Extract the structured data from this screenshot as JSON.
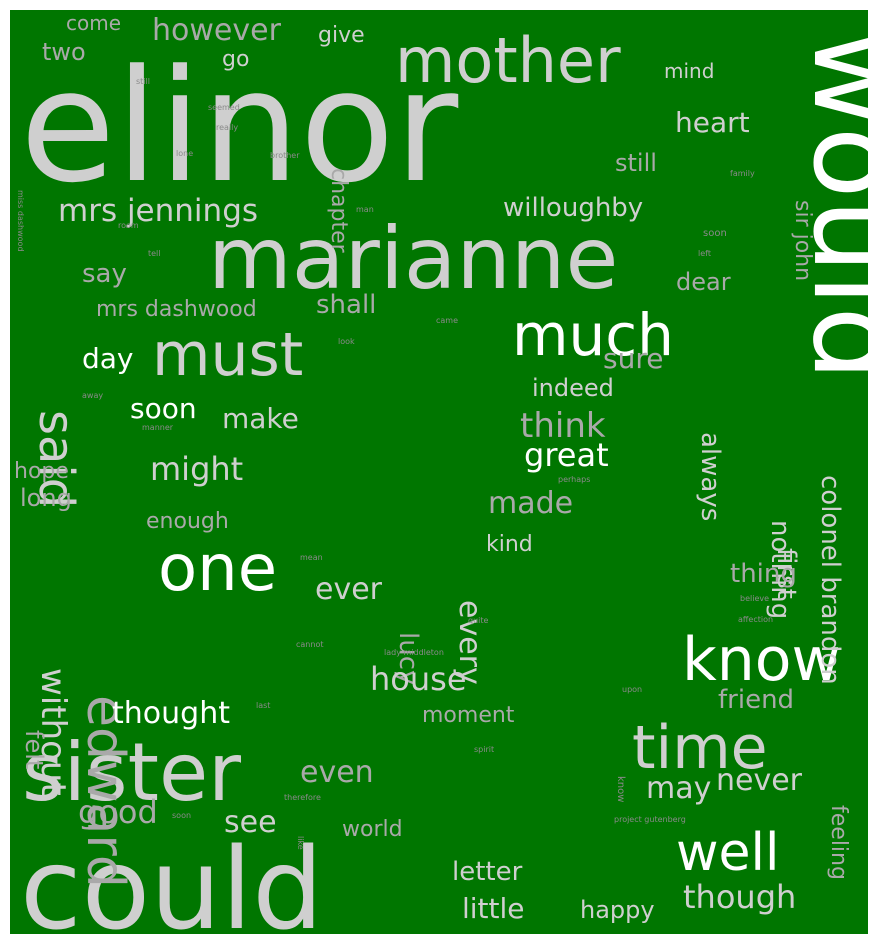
{
  "background_color": "#007600",
  "palette": {
    "white": "#ffffff",
    "light": "#cfcfcf",
    "mid": "#a9a9a9",
    "dim": "#8a8a8a"
  },
  "words": [
    {
      "text": "elinor",
      "color": "light"
    },
    {
      "text": "would",
      "color": "white"
    },
    {
      "text": "marianne",
      "color": "light"
    },
    {
      "text": "could",
      "color": "light"
    },
    {
      "text": "sister",
      "color": "light"
    },
    {
      "text": "mother",
      "color": "light"
    },
    {
      "text": "much",
      "color": "white"
    },
    {
      "text": "must",
      "color": "light"
    },
    {
      "text": "one",
      "color": "white"
    },
    {
      "text": "know",
      "color": "white"
    },
    {
      "text": "time",
      "color": "light"
    },
    {
      "text": "well",
      "color": "white"
    },
    {
      "text": "edward",
      "color": "mid"
    },
    {
      "text": "said",
      "color": "light"
    },
    {
      "text": "mrs jennings",
      "color": "light"
    },
    {
      "text": "willoughby",
      "color": "light"
    },
    {
      "text": "though",
      "color": "light"
    },
    {
      "text": "colonel brandon",
      "color": "light"
    },
    {
      "text": "however",
      "color": "mid"
    },
    {
      "text": "heart",
      "color": "light"
    },
    {
      "text": "still",
      "color": "mid"
    },
    {
      "text": "say",
      "color": "mid"
    },
    {
      "text": "shall",
      "color": "mid"
    },
    {
      "text": "mrs dashwood",
      "color": "mid"
    },
    {
      "text": "dear",
      "color": "mid"
    },
    {
      "text": "nothing",
      "color": "light"
    },
    {
      "text": "day",
      "color": "white"
    },
    {
      "text": "sure",
      "color": "mid"
    },
    {
      "text": "soon",
      "color": "white"
    },
    {
      "text": "make",
      "color": "light"
    },
    {
      "text": "indeed",
      "color": "light"
    },
    {
      "text": "think",
      "color": "mid"
    },
    {
      "text": "always",
      "color": "light"
    },
    {
      "text": "great",
      "color": "white"
    },
    {
      "text": "might",
      "color": "light"
    },
    {
      "text": "first",
      "color": "light"
    },
    {
      "text": "hope",
      "color": "mid"
    },
    {
      "text": "long",
      "color": "mid"
    },
    {
      "text": "made",
      "color": "mid"
    },
    {
      "text": "enough",
      "color": "mid"
    },
    {
      "text": "every",
      "color": "light"
    },
    {
      "text": "kind",
      "color": "light"
    },
    {
      "text": "without",
      "color": "light"
    },
    {
      "text": "ever",
      "color": "light"
    },
    {
      "text": "thing",
      "color": "mid"
    },
    {
      "text": "lucy",
      "color": "mid"
    },
    {
      "text": "felt",
      "color": "mid"
    },
    {
      "text": "house",
      "color": "light"
    },
    {
      "text": "friend",
      "color": "mid"
    },
    {
      "text": "thought",
      "color": "white"
    },
    {
      "text": "moment",
      "color": "mid"
    },
    {
      "text": "feeling",
      "color": "mid"
    },
    {
      "text": "even",
      "color": "mid"
    },
    {
      "text": "may",
      "color": "light"
    },
    {
      "text": "never",
      "color": "light"
    },
    {
      "text": "good",
      "color": "mid"
    },
    {
      "text": "see",
      "color": "light"
    },
    {
      "text": "world",
      "color": "mid"
    },
    {
      "text": "letter",
      "color": "light"
    },
    {
      "text": "little",
      "color": "light"
    },
    {
      "text": "happy",
      "color": "light"
    },
    {
      "text": "two",
      "color": "mid"
    },
    {
      "text": "come",
      "color": "mid"
    },
    {
      "text": "go",
      "color": "light"
    },
    {
      "text": "give",
      "color": "light"
    },
    {
      "text": "mind",
      "color": "light"
    },
    {
      "text": "chapter",
      "color": "mid"
    },
    {
      "text": "sir john",
      "color": "mid"
    },
    {
      "text": "miss dashwood",
      "color": "dim"
    },
    {
      "text": "still",
      "color": "dim"
    },
    {
      "text": "seemed",
      "color": "dim"
    },
    {
      "text": "really",
      "color": "dim"
    },
    {
      "text": "brother",
      "color": "dim"
    },
    {
      "text": "lone",
      "color": "dim"
    },
    {
      "text": "family",
      "color": "dim"
    },
    {
      "text": "room",
      "color": "dim"
    },
    {
      "text": "tell",
      "color": "dim"
    },
    {
      "text": "soon",
      "color": "dim"
    },
    {
      "text": "left",
      "color": "dim"
    },
    {
      "text": "man",
      "color": "dim"
    },
    {
      "text": "came",
      "color": "dim"
    },
    {
      "text": "look",
      "color": "dim"
    },
    {
      "text": "away",
      "color": "dim"
    },
    {
      "text": "manner",
      "color": "dim"
    },
    {
      "text": "perhaps",
      "color": "dim"
    },
    {
      "text": "mean",
      "color": "dim"
    },
    {
      "text": "believe",
      "color": "dim"
    },
    {
      "text": "quite",
      "color": "dim"
    },
    {
      "text": "affection",
      "color": "dim"
    },
    {
      "text": "cannot",
      "color": "dim"
    },
    {
      "text": "lady middleton",
      "color": "dim"
    },
    {
      "text": "upon",
      "color": "dim"
    },
    {
      "text": "last",
      "color": "dim"
    },
    {
      "text": "spirit",
      "color": "dim"
    },
    {
      "text": "therefore",
      "color": "dim"
    },
    {
      "text": "know",
      "color": "dim"
    },
    {
      "text": "project gutenberg",
      "color": "dim"
    },
    {
      "text": "like",
      "color": "dim"
    },
    {
      "text": "soon",
      "color": "dim"
    }
  ]
}
